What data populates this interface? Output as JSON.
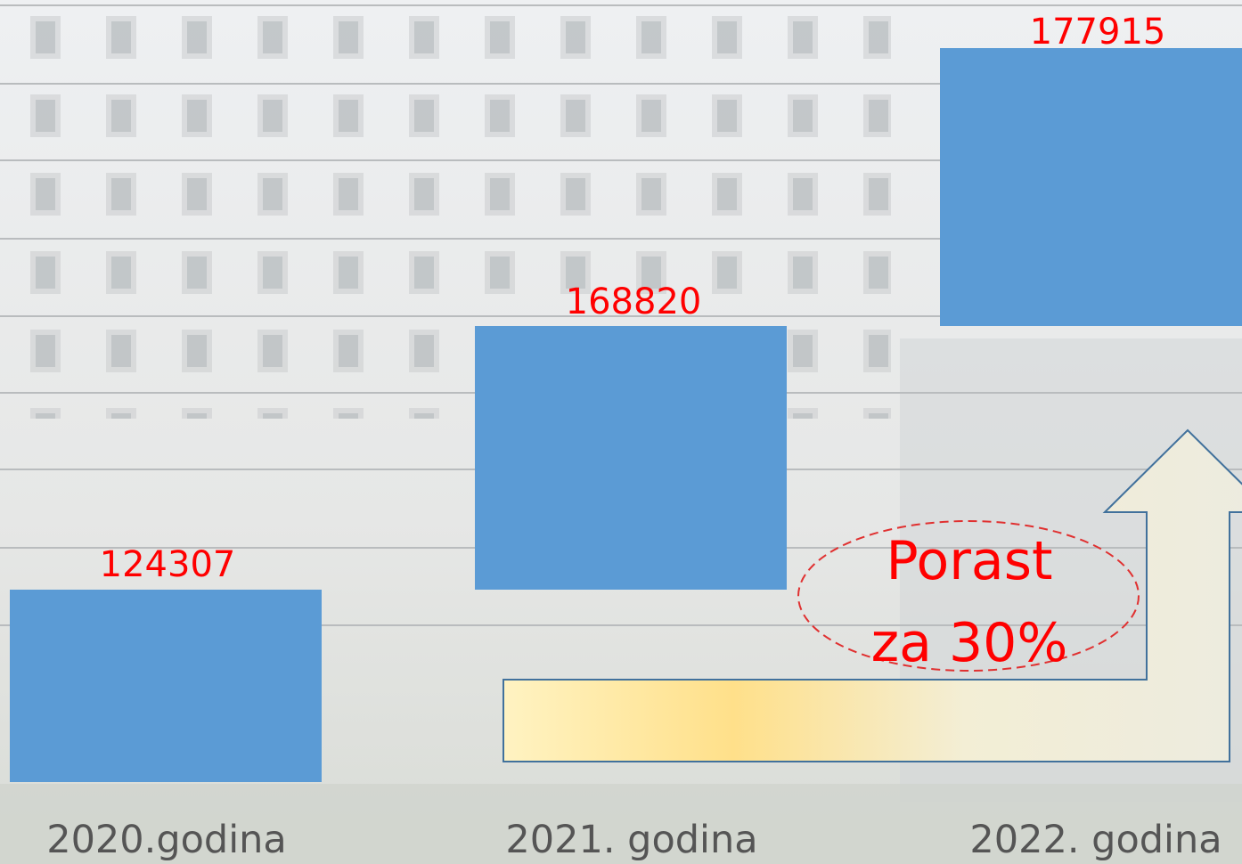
{
  "bars": [
    {
      "label": "2020.godina",
      "value": 124307
    },
    {
      "label": "2021. godina",
      "value": 168820
    },
    {
      "label": "2022. godina",
      "value": 177915
    }
  ],
  "annotation": {
    "lines": [
      "Porast",
      "za 30%"
    ]
  }
}
